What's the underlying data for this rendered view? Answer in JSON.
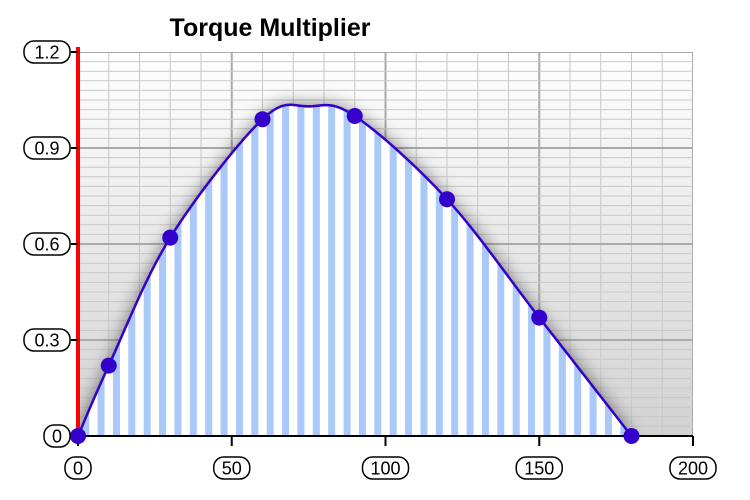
{
  "chart_data": {
    "type": "area",
    "title": "Torque Multiplier",
    "xlabel": "",
    "ylabel": "",
    "xlim": [
      0,
      200
    ],
    "ylim": [
      0,
      1.2
    ],
    "x_ticks": [
      {
        "value": 0,
        "label": "0"
      },
      {
        "value": 50,
        "label": "50"
      },
      {
        "value": 100,
        "label": "100"
      },
      {
        "value": 150,
        "label": "150"
      },
      {
        "value": 200,
        "label": "200"
      }
    ],
    "y_ticks": [
      {
        "value": 0,
        "label": "0"
      },
      {
        "value": 0.3,
        "label": "0.3"
      },
      {
        "value": 0.6,
        "label": "0.6"
      },
      {
        "value": 0.9,
        "label": "0.9"
      },
      {
        "value": 1.2,
        "label": "1.2"
      }
    ],
    "grid": true,
    "series": [
      {
        "points": [
          {
            "x": 0,
            "y": 0
          },
          {
            "x": 10,
            "y": 0.22
          },
          {
            "x": 30,
            "y": 0.62
          },
          {
            "x": 60,
            "y": 0.99
          },
          {
            "x": 90,
            "y": 1.0
          },
          {
            "x": 120,
            "y": 0.74
          },
          {
            "x": 150,
            "y": 0.37
          },
          {
            "x": 180,
            "y": 0
          }
        ],
        "curve_peak": {
          "x": 75,
          "y": 1.03
        }
      }
    ],
    "colors": {
      "line": "#3300cc",
      "marker": "#3300cc",
      "fill_stripe": "#aac8f8",
      "y_axis": "#ff0000",
      "grid_major": "#aaaaaa",
      "grid_minor": "#c8c8c8"
    }
  }
}
